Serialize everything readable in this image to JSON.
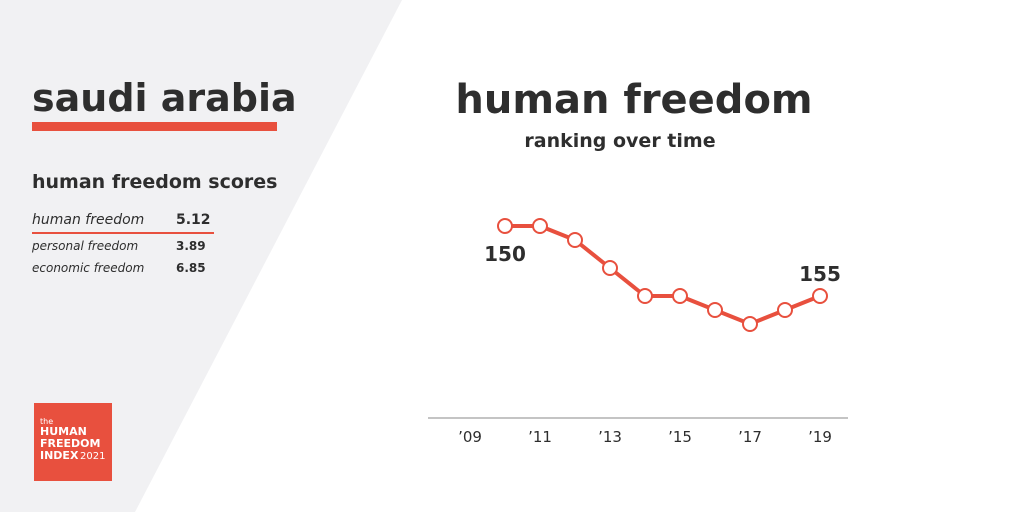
{
  "country": "saudi arabia",
  "scores": {
    "title": "human freedom scores",
    "rows": [
      {
        "label": "human freedom",
        "value": 5.12
      },
      {
        "label": "personal freedom",
        "value": 3.89
      },
      {
        "label": "economic freedom",
        "value": 6.85
      }
    ]
  },
  "logo": {
    "small": "the",
    "line1": "HUMAN",
    "line2": "FREEDOM",
    "line3": "INDEX",
    "year": "2021"
  },
  "chart_data": {
    "type": "line",
    "title": "human freedom",
    "subtitle": "ranking over time",
    "x": [
      2010,
      2011,
      2012,
      2013,
      2014,
      2015,
      2016,
      2017,
      2018,
      2019
    ],
    "values": [
      150,
      150,
      151,
      153,
      155,
      155,
      156,
      157,
      156,
      155
    ],
    "color": "#e8503e",
    "xlim": [
      2007.8,
      2019.8
    ],
    "xticks": [
      {
        "value": 2009,
        "label": "’09"
      },
      {
        "value": 2011,
        "label": "’11"
      },
      {
        "value": 2013,
        "label": "’13"
      },
      {
        "value": 2015,
        "label": "’15"
      },
      {
        "value": 2017,
        "label": "’17"
      },
      {
        "value": 2019,
        "label": "’19"
      }
    ],
    "ylim": [
      164,
      146
    ]
  }
}
